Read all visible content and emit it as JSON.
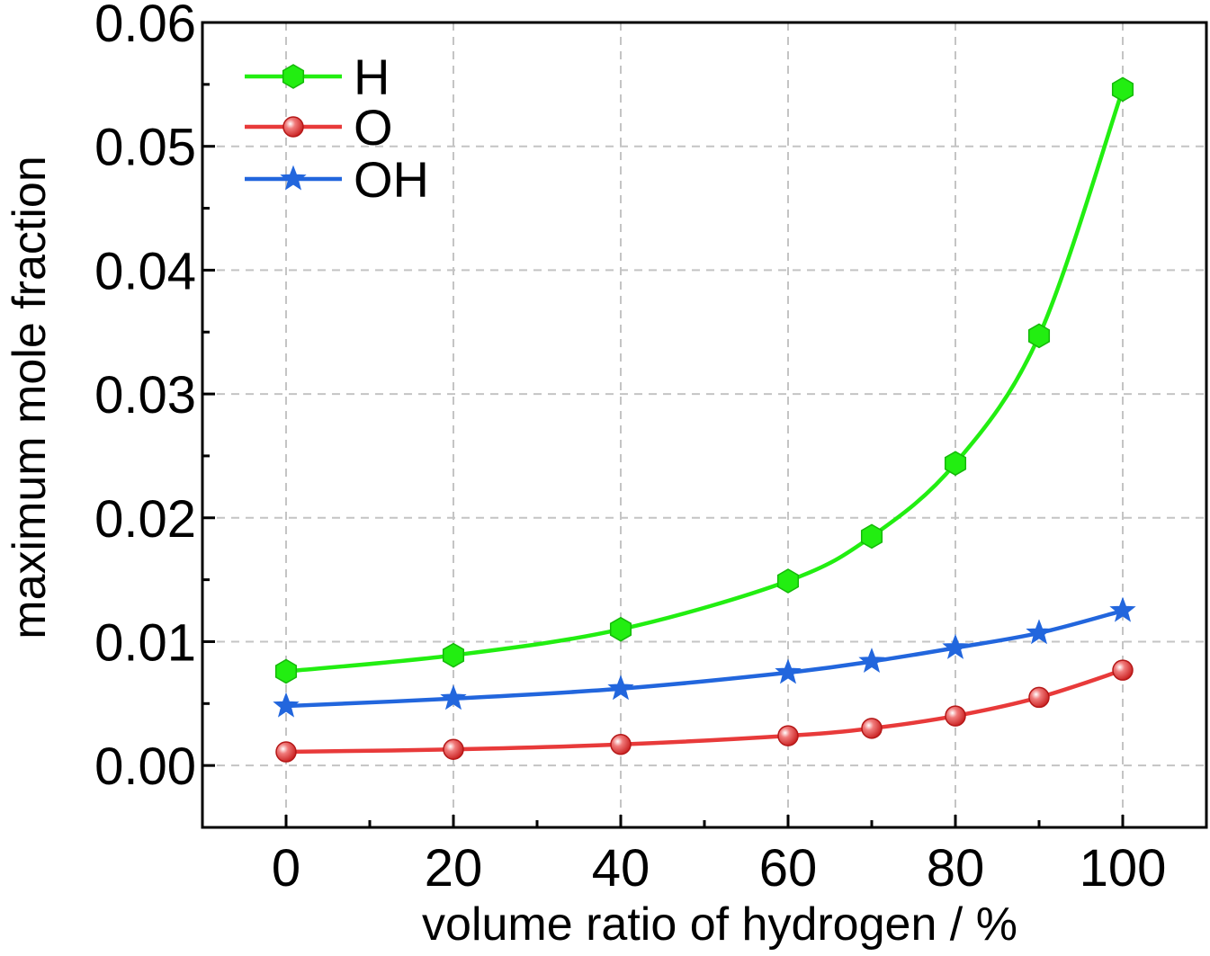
{
  "chart_data": {
    "type": "line",
    "title": "",
    "xlabel": "volume ratio of hydrogen / %",
    "ylabel": "maximum mole fraction",
    "xlim": [
      -10,
      110
    ],
    "ylim": [
      -0.005,
      0.06
    ],
    "xticks": [
      0,
      20,
      40,
      60,
      80,
      100
    ],
    "xtick_labels": [
      "0",
      "20",
      "40",
      "60",
      "80",
      "100"
    ],
    "yticks": [
      0.0,
      0.01,
      0.02,
      0.03,
      0.04,
      0.05,
      0.06
    ],
    "ytick_labels": [
      "0.00",
      "0.01",
      "0.02",
      "0.03",
      "0.04",
      "0.05",
      "0.06"
    ],
    "grid": true,
    "legend_position": "top-left",
    "x": [
      0,
      20,
      40,
      60,
      70,
      80,
      90,
      100
    ],
    "series": [
      {
        "name": "H",
        "marker": "hexagon",
        "color": "#22ee11",
        "values": [
          0.0076,
          0.0089,
          0.011,
          0.0149,
          0.0185,
          0.0244,
          0.0347,
          0.0546
        ]
      },
      {
        "name": "O",
        "marker": "sphere",
        "color": "#e83a3a",
        "values": [
          0.0011,
          0.0013,
          0.0017,
          0.0024,
          0.003,
          0.004,
          0.0055,
          0.0077
        ]
      },
      {
        "name": "OH",
        "marker": "star",
        "color": "#2266dd",
        "values": [
          0.0048,
          0.0054,
          0.0062,
          0.0075,
          0.0084,
          0.0095,
          0.0107,
          0.0125
        ]
      }
    ]
  }
}
